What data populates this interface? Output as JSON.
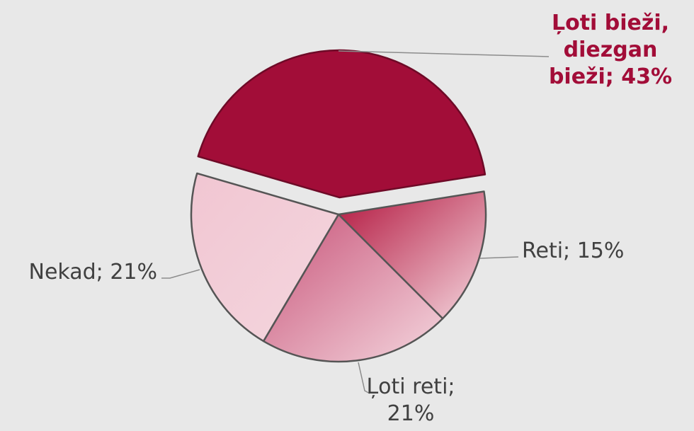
{
  "chart_data": {
    "type": "pie",
    "labels": [
      "Ļoti bieži, diezgan bieži; 43%",
      "Reti; 15%",
      "Ļoti reti; 21%",
      "Nekad; 21%"
    ],
    "values": [
      43,
      15,
      21,
      21
    ],
    "colors": [
      "#a20d38",
      "#b3173f",
      "#c85479",
      "#f1c6d2"
    ]
  }
}
